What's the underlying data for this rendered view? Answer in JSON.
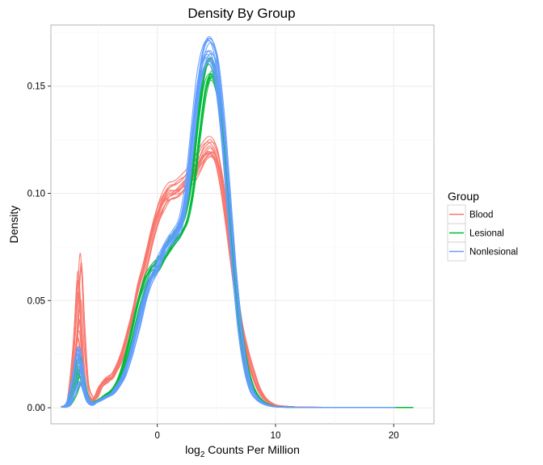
{
  "chart_data": {
    "type": "line",
    "title": "Density By Group",
    "xlabel_main": "log",
    "xlabel_sub": "2",
    "xlabel_rest": " Counts Per Million",
    "ylabel": "Density",
    "xlim": [
      -9.0,
      23.4
    ],
    "ylim": [
      -0.0075,
      0.1785
    ],
    "x_ticks": [
      0,
      10,
      20
    ],
    "x_tick_labels": [
      "0",
      "10",
      "20"
    ],
    "y_ticks": [
      0.0,
      0.05,
      0.1,
      0.15
    ],
    "y_tick_labels": [
      "0.00",
      "0.05",
      "0.10",
      "0.15"
    ],
    "grid": true,
    "legend": {
      "title": "Group",
      "position": "right",
      "entries": [
        "Blood",
        "Lesional",
        "Nonlesional"
      ]
    },
    "series": [
      {
        "name": "Blood",
        "color": "#F8766D",
        "replicates": 14,
        "x": [
          -8,
          -7.5,
          -7,
          -6.6,
          -6.3,
          -6,
          -5.6,
          -5.2,
          -4.8,
          -4.3,
          -3.8,
          -3.3,
          -2.8,
          -2.2,
          -1.6,
          -1,
          -0.5,
          0,
          0.5,
          1,
          1.5,
          2,
          2.5,
          3,
          3.5,
          4,
          4.5,
          5,
          5.5,
          6,
          6.5,
          7,
          7.5,
          8,
          8.5,
          9,
          9.5,
          10,
          11,
          12,
          14,
          16,
          18,
          20
        ],
        "values": [
          0.0005,
          0.003,
          0.025,
          0.052,
          0.03,
          0.01,
          0.004,
          0.005,
          0.01,
          0.013,
          0.015,
          0.02,
          0.028,
          0.04,
          0.055,
          0.068,
          0.08,
          0.09,
          0.097,
          0.101,
          0.102,
          0.104,
          0.107,
          0.11,
          0.115,
          0.12,
          0.122,
          0.118,
          0.105,
          0.085,
          0.062,
          0.042,
          0.028,
          0.018,
          0.01,
          0.005,
          0.0025,
          0.0012,
          0.0006,
          0.0003,
          0.0002,
          0.0001,
          0.0001,
          0.0001
        ]
      },
      {
        "name": "Lesional",
        "color": "#00BA38",
        "replicates": 14,
        "x": [
          -8,
          -7.5,
          -7,
          -6.6,
          -6.3,
          -6,
          -5.6,
          -5.2,
          -4.8,
          -4.3,
          -3.8,
          -3.3,
          -2.8,
          -2.2,
          -1.6,
          -1,
          -0.5,
          0,
          0.5,
          1,
          1.5,
          2,
          2.5,
          3,
          3.5,
          4,
          4.5,
          5,
          5.5,
          6,
          6.5,
          7,
          7.5,
          8,
          8.5,
          9,
          9.5,
          10,
          11,
          12,
          14,
          16,
          18,
          20,
          21.5
        ],
        "values": [
          0.0003,
          0.002,
          0.01,
          0.018,
          0.012,
          0.005,
          0.002,
          0.003,
          0.004,
          0.006,
          0.008,
          0.012,
          0.02,
          0.033,
          0.047,
          0.058,
          0.063,
          0.066,
          0.07,
          0.075,
          0.079,
          0.083,
          0.09,
          0.105,
          0.13,
          0.15,
          0.157,
          0.15,
          0.128,
          0.097,
          0.065,
          0.038,
          0.02,
          0.01,
          0.005,
          0.0025,
          0.0012,
          0.0006,
          0.0003,
          0.0002,
          0.0001,
          0.0001,
          0.0001,
          0.0002,
          0.0001
        ]
      },
      {
        "name": "Nonlesional",
        "color": "#619CFF",
        "replicates": 14,
        "x": [
          -8,
          -7.5,
          -7,
          -6.6,
          -6.3,
          -6,
          -5.6,
          -5.2,
          -4.8,
          -4.3,
          -3.8,
          -3.3,
          -2.8,
          -2.2,
          -1.6,
          -1,
          -0.5,
          0,
          0.5,
          1,
          1.5,
          2,
          2.5,
          3,
          3.5,
          4,
          4.5,
          5,
          5.5,
          6,
          6.5,
          7,
          7.5,
          8,
          8.5,
          9,
          9.5,
          10,
          11,
          12,
          14,
          16,
          18,
          20
        ],
        "values": [
          0.0003,
          0.002,
          0.011,
          0.02,
          0.013,
          0.005,
          0.002,
          0.0025,
          0.0035,
          0.005,
          0.0065,
          0.01,
          0.015,
          0.025,
          0.038,
          0.052,
          0.06,
          0.066,
          0.072,
          0.077,
          0.08,
          0.086,
          0.1,
          0.125,
          0.15,
          0.163,
          0.166,
          0.158,
          0.134,
          0.1,
          0.065,
          0.036,
          0.018,
          0.008,
          0.004,
          0.002,
          0.001,
          0.0005,
          0.0002,
          0.0001,
          0.0001,
          0.0001,
          0.0001,
          0.0001
        ]
      }
    ]
  }
}
